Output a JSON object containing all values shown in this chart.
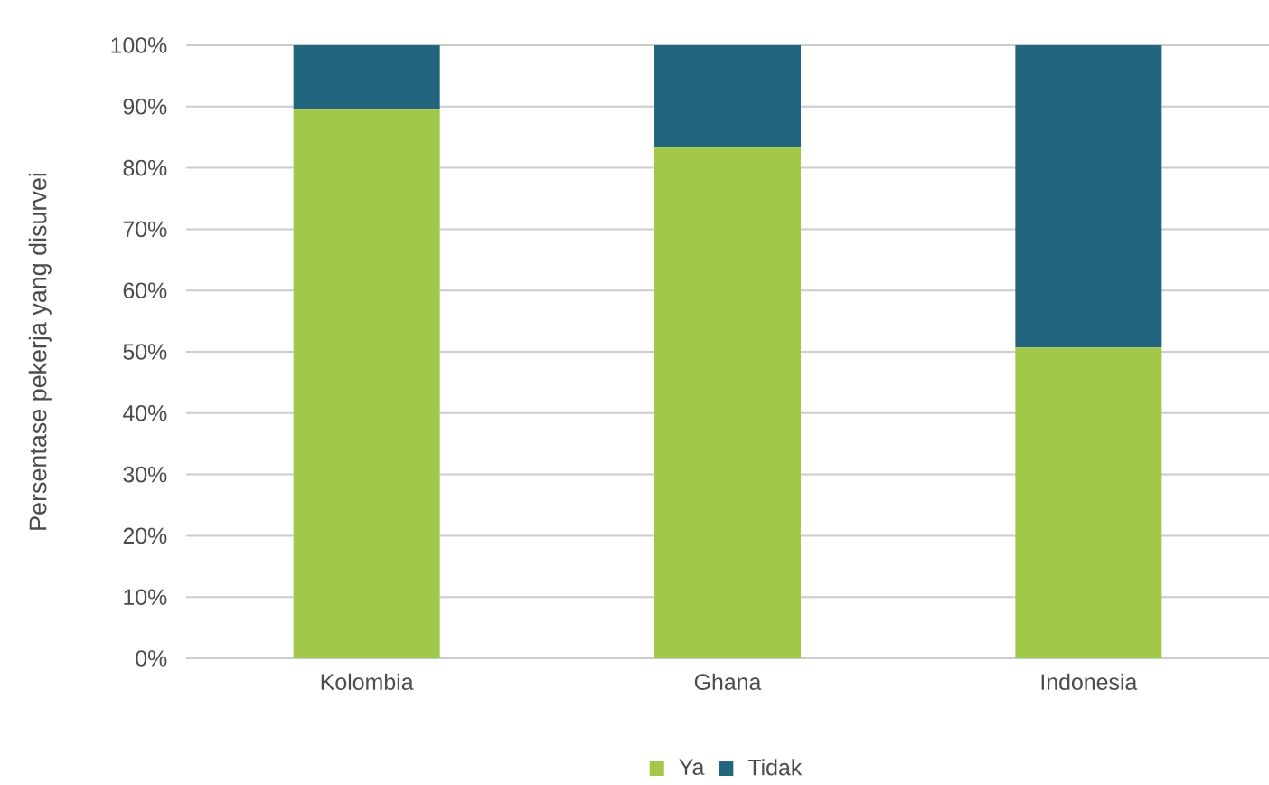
{
  "chart_data": {
    "type": "bar",
    "stacked": true,
    "ylabel": "Persentase pekerja yang disurvei",
    "categories": [
      "Kolombia",
      "Ghana",
      "Indonesia"
    ],
    "series": [
      {
        "name": "Ya",
        "color": "#a2c84a",
        "values": [
          89.5,
          83.3,
          50.7
        ]
      },
      {
        "name": "Tidak",
        "color": "#22657e",
        "values": [
          10.5,
          16.7,
          49.3
        ]
      }
    ],
    "ylim": [
      0,
      100
    ],
    "yticks": [
      {
        "value": 0,
        "label": "0%"
      },
      {
        "value": 10,
        "label": "10%"
      },
      {
        "value": 20,
        "label": "20%"
      },
      {
        "value": 30,
        "label": "30%"
      },
      {
        "value": 40,
        "label": "40%"
      },
      {
        "value": 50,
        "label": "50%"
      },
      {
        "value": 60,
        "label": "60%"
      },
      {
        "value": 70,
        "label": "70%"
      },
      {
        "value": 80,
        "label": "80%"
      },
      {
        "value": 90,
        "label": "90%"
      },
      {
        "value": 100,
        "label": "100%"
      }
    ],
    "grid": "y",
    "legend": "bottom"
  }
}
